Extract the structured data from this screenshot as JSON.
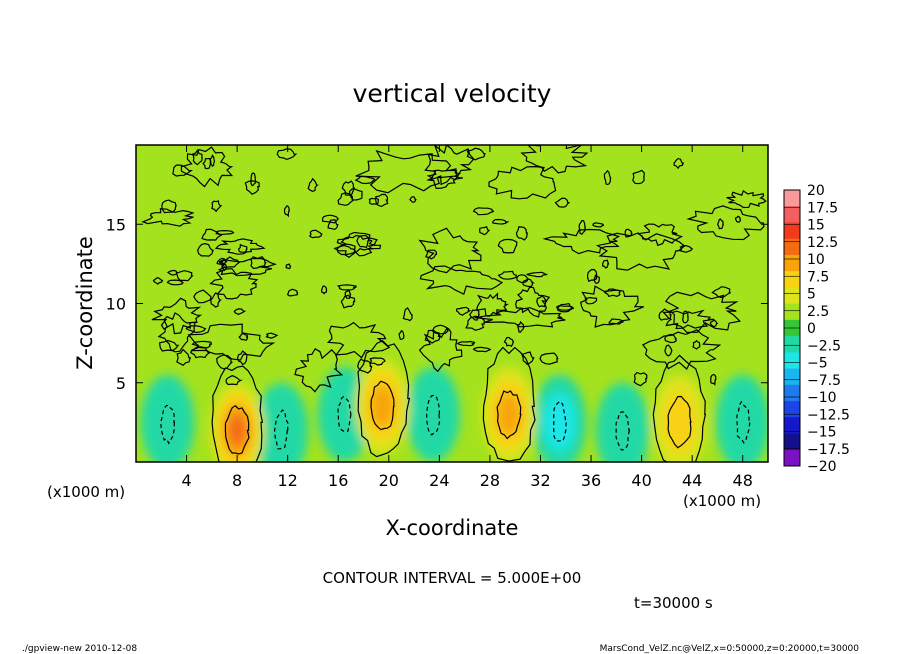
{
  "chart_data": {
    "type": "heatmap",
    "title": "vertical velocity",
    "xlabel": "X-coordinate",
    "ylabel": "Z-coordinate",
    "x_unit_label_left": "(x1000 m)",
    "x_unit_label_right": "(x1000 m)",
    "xlim": [
      0,
      50
    ],
    "ylim": [
      0,
      20
    ],
    "x_ticks": [
      4,
      8,
      12,
      16,
      20,
      24,
      28,
      32,
      36,
      40,
      44,
      48
    ],
    "y_ticks": [
      5,
      10,
      15
    ],
    "contour_interval_text": "CONTOUR INTERVAL = 5.000E+00",
    "time_label": "t=30000 s",
    "colorbar": {
      "levels": [
        20,
        17.5,
        15,
        12.5,
        10,
        7.5,
        5,
        2.5,
        0,
        -2.5,
        -5,
        -7.5,
        -10,
        -12.5,
        -15,
        -17.5,
        -20
      ],
      "level_labels": [
        "20",
        "17.5",
        "15",
        "12.5",
        "10",
        "7.5",
        "5",
        "2.5",
        "0",
        "−2.5",
        "−5",
        "−7.5",
        "−10",
        "−12.5",
        "−15",
        "−17.5",
        "−20"
      ],
      "colors": [
        "#f89a9a",
        "#f46060",
        "#f23a1c",
        "#f56b12",
        "#f8a40a",
        "#f9d212",
        "#dde41a",
        "#a4e21e",
        "#33c833",
        "#21d9a5",
        "#1ee6e6",
        "#1ab6f2",
        "#1f79ef",
        "#1c43e4",
        "#1616cc",
        "#14108a",
        "#7a12c4"
      ]
    },
    "background_value_range": [
      0,
      2.5
    ],
    "updraft_cores": [
      {
        "x": 8,
        "z": 2,
        "peak": 10
      },
      {
        "x": 19.5,
        "z": 3.5,
        "peak": 7.5
      },
      {
        "x": 29.5,
        "z": 3,
        "peak": 7.5
      },
      {
        "x": 43,
        "z": 2.5,
        "peak": 5
      }
    ],
    "downdraft_cores": [
      {
        "x": 2.5,
        "z": 2.5,
        "peak": -2.5
      },
      {
        "x": 11.5,
        "z": 2,
        "peak": -2.5
      },
      {
        "x": 16.5,
        "z": 3,
        "peak": -2.5
      },
      {
        "x": 23.5,
        "z": 3,
        "peak": -2.5
      },
      {
        "x": 33.5,
        "z": 2.5,
        "peak": -5
      },
      {
        "x": 38.5,
        "z": 2,
        "peak": -2.5
      },
      {
        "x": 48,
        "z": 2.5,
        "peak": -2.5
      }
    ]
  },
  "footer": {
    "left": "./gpview-new   2010-12-08",
    "right": "MarsCond_VelZ.nc@VelZ,x=0:50000,z=0:20000,t=30000"
  }
}
